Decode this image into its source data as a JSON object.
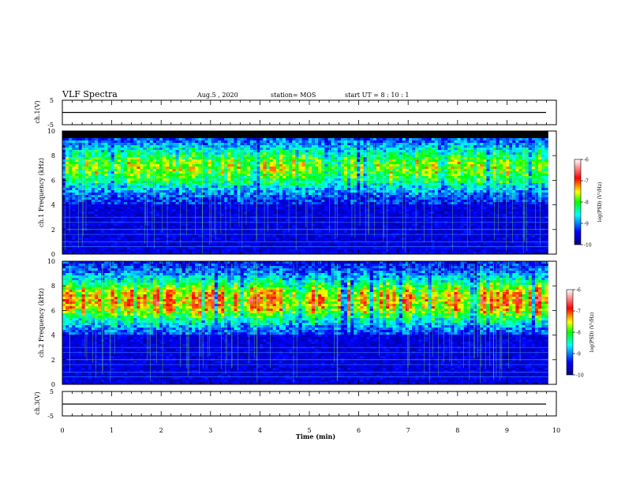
{
  "header": {
    "title": "VLF Spectra",
    "date": "Aug.5 , 2020",
    "station": "station= MOS",
    "start": "start UT = 8 : 10 : 1"
  },
  "colorbar": {
    "label": "log(PSD) (V²/Hz)",
    "ticks": [
      "-6",
      "-7",
      "-8",
      "-9",
      "-10"
    ]
  },
  "chart_data": [
    {
      "type": "line",
      "name": "ch.1 waveform",
      "ylabel": "ch.1(V)",
      "ylim": [
        -5,
        5
      ],
      "y_ticks": [
        "5",
        "-5"
      ],
      "x": [
        0,
        10
      ],
      "values": [
        0,
        0
      ]
    },
    {
      "type": "heatmap",
      "name": "ch.1 spectrogram",
      "ylabel": "ch.1 Frequency (kHz)",
      "ylim": [
        0,
        10
      ],
      "y_ticks": [
        "0",
        "2",
        "4",
        "6",
        "8",
        "10"
      ],
      "xlim": [
        0,
        10
      ],
      "z_range": [
        -10,
        -6
      ],
      "band_center_khz": 7,
      "data_end_min": 9.83
    },
    {
      "type": "heatmap",
      "name": "ch.2 spectrogram",
      "ylabel": "ch.2 Frequency (kHz)",
      "ylim": [
        0,
        10
      ],
      "y_ticks": [
        "0",
        "2",
        "4",
        "6",
        "8",
        "10"
      ],
      "xlim": [
        0,
        10
      ],
      "z_range": [
        -10,
        -6
      ],
      "band_center_khz": 6.8,
      "data_end_min": 9.83
    },
    {
      "type": "line",
      "name": "ch.3 waveform",
      "ylabel": "ch.3(V)",
      "ylim": [
        -5,
        5
      ],
      "y_ticks": [
        "5",
        "-5"
      ],
      "x": [
        0,
        10
      ],
      "values": [
        0,
        0
      ],
      "xlabel": "Time (min)",
      "x_ticks": [
        "0",
        "1",
        "2",
        "3",
        "4",
        "5",
        "6",
        "7",
        "8",
        "9",
        "10"
      ]
    }
  ],
  "colors": {
    "axis": "#000000",
    "background": "#ffffff",
    "colormap": [
      "#00007f",
      "#0000ff",
      "#00ffff",
      "#00ff00",
      "#ffff00",
      "#ff0000",
      "#ffffff"
    ]
  }
}
